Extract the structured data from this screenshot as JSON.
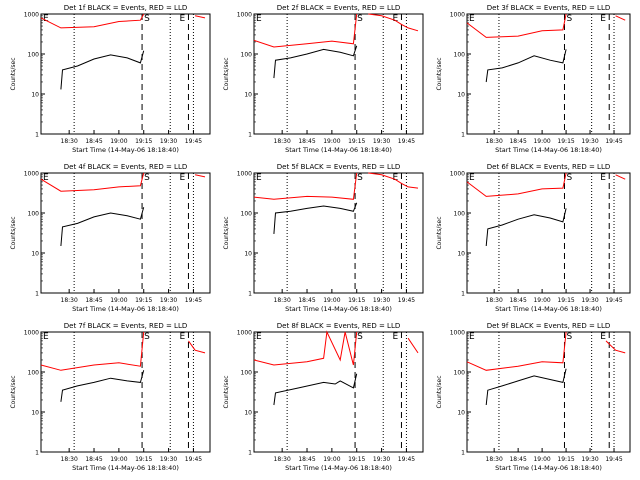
{
  "chart_data": [
    {
      "type": "line",
      "title": "Det 1f BLACK = Events, RED = LLD",
      "xlabel": "Start Time (14-May-06 18:18:40)",
      "ylabel": "Counts/sec",
      "yscale": "log",
      "ylim": [
        1,
        1000
      ],
      "grid": false,
      "xticks": [
        "18:30",
        "18:45",
        "19:00",
        "19:15",
        "19:30",
        "19:45"
      ],
      "markers": [
        "E",
        "S",
        "E"
      ],
      "series": [
        {
          "color": "#000000",
          "values": [
            {
              "t": "18:25",
              "v": 13
            },
            {
              "t": "18:26",
              "v": 40
            },
            {
              "t": "18:35",
              "v": 50
            },
            {
              "t": "18:45",
              "v": 75
            },
            {
              "t": "18:55",
              "v": 95
            },
            {
              "t": "19:05",
              "v": 80
            },
            {
              "t": "19:13",
              "v": 60
            },
            {
              "t": "19:15",
              "v": 120
            }
          ]
        },
        {
          "color": "#ff0000",
          "values": [
            {
              "t": "18:13",
              "v": 800
            },
            {
              "t": "18:25",
              "v": 450
            },
            {
              "t": "18:45",
              "v": 480
            },
            {
              "t": "19:00",
              "v": 650
            },
            {
              "t": "19:13",
              "v": 700
            },
            {
              "t": "19:15",
              "v": 1000
            }
          ]
        },
        {
          "color": "#ff0000",
          "values": [
            {
              "t": "19:46",
              "v": 900
            },
            {
              "t": "19:52",
              "v": 800
            }
          ]
        }
      ]
    },
    {
      "type": "line",
      "title": "Det 2f BLACK = Events, RED = LLD",
      "xlabel": "Start Time (14-May-06 18:18:40)",
      "ylabel": "Counts/sec",
      "yscale": "log",
      "ylim": [
        1,
        1000
      ],
      "grid": false,
      "xticks": [
        "18:30",
        "18:45",
        "19:00",
        "19:15",
        "19:30",
        "19:45"
      ],
      "markers": [
        "E",
        "S",
        "E"
      ],
      "series": [
        {
          "color": "#000000",
          "values": [
            {
              "t": "18:25",
              "v": 25
            },
            {
              "t": "18:26",
              "v": 70
            },
            {
              "t": "18:35",
              "v": 80
            },
            {
              "t": "18:45",
              "v": 100
            },
            {
              "t": "18:55",
              "v": 130
            },
            {
              "t": "19:05",
              "v": 110
            },
            {
              "t": "19:13",
              "v": 90
            },
            {
              "t": "19:15",
              "v": 160
            }
          ]
        },
        {
          "color": "#ff0000",
          "values": [
            {
              "t": "18:13",
              "v": 220
            },
            {
              "t": "18:25",
              "v": 150
            },
            {
              "t": "18:45",
              "v": 180
            },
            {
              "t": "19:00",
              "v": 210
            },
            {
              "t": "19:13",
              "v": 180
            },
            {
              "t": "19:15",
              "v": 1000
            }
          ]
        },
        {
          "color": "#ff0000",
          "values": [
            {
              "t": "19:22",
              "v": 1000
            },
            {
              "t": "19:30",
              "v": 900
            },
            {
              "t": "19:38",
              "v": 700
            },
            {
              "t": "19:42",
              "v": 550
            },
            {
              "t": "19:46",
              "v": 450
            },
            {
              "t": "19:52",
              "v": 380
            }
          ]
        }
      ]
    },
    {
      "type": "line",
      "title": "Det 3f BLACK = Events, RED = LLD",
      "xlabel": "Start Time (14-May-06 18:18:40)",
      "ylabel": "Counts/sec",
      "yscale": "log",
      "ylim": [
        1,
        1000
      ],
      "grid": false,
      "xticks": [
        "18:30",
        "18:45",
        "19:00",
        "19:15",
        "19:30",
        "19:45"
      ],
      "markers": [
        "E",
        "S",
        "E"
      ],
      "series": [
        {
          "color": "#000000",
          "values": [
            {
              "t": "18:25",
              "v": 20
            },
            {
              "t": "18:26",
              "v": 40
            },
            {
              "t": "18:35",
              "v": 45
            },
            {
              "t": "18:45",
              "v": 60
            },
            {
              "t": "18:55",
              "v": 90
            },
            {
              "t": "19:05",
              "v": 70
            },
            {
              "t": "19:13",
              "v": 60
            },
            {
              "t": "19:15",
              "v": 130
            }
          ]
        },
        {
          "color": "#ff0000",
          "values": [
            {
              "t": "18:13",
              "v": 600
            },
            {
              "t": "18:25",
              "v": 260
            },
            {
              "t": "18:45",
              "v": 280
            },
            {
              "t": "19:00",
              "v": 380
            },
            {
              "t": "19:13",
              "v": 400
            },
            {
              "t": "19:15",
              "v": 1000
            }
          ]
        },
        {
          "color": "#ff0000",
          "values": [
            {
              "t": "19:46",
              "v": 900
            },
            {
              "t": "19:52",
              "v": 700
            }
          ]
        }
      ]
    },
    {
      "type": "line",
      "title": "Det 4f BLACK = Events, RED = LLD",
      "xlabel": "Start Time (14-May-06 18:18:40)",
      "ylabel": "Counts/sec",
      "yscale": "log",
      "ylim": [
        1,
        1000
      ],
      "grid": false,
      "xticks": [
        "18:30",
        "18:45",
        "19:00",
        "19:15",
        "19:30",
        "19:45"
      ],
      "markers": [
        "E",
        "S",
        "E"
      ],
      "series": [
        {
          "color": "#000000",
          "values": [
            {
              "t": "18:25",
              "v": 15
            },
            {
              "t": "18:26",
              "v": 45
            },
            {
              "t": "18:35",
              "v": 55
            },
            {
              "t": "18:45",
              "v": 80
            },
            {
              "t": "18:55",
              "v": 100
            },
            {
              "t": "19:05",
              "v": 85
            },
            {
              "t": "19:13",
              "v": 70
            },
            {
              "t": "19:15",
              "v": 140
            }
          ]
        },
        {
          "color": "#ff0000",
          "values": [
            {
              "t": "18:13",
              "v": 700
            },
            {
              "t": "18:25",
              "v": 350
            },
            {
              "t": "18:45",
              "v": 380
            },
            {
              "t": "19:00",
              "v": 450
            },
            {
              "t": "19:13",
              "v": 480
            },
            {
              "t": "19:15",
              "v": 1000
            }
          ]
        },
        {
          "color": "#ff0000",
          "values": [
            {
              "t": "19:46",
              "v": 900
            },
            {
              "t": "19:52",
              "v": 800
            }
          ]
        }
      ]
    },
    {
      "type": "line",
      "title": "Det 5f BLACK = Events, RED = LLD",
      "xlabel": "Start Time (14-May-06 18:18:40)",
      "ylabel": "Counts/sec",
      "yscale": "log",
      "ylim": [
        1,
        1000
      ],
      "grid": false,
      "xticks": [
        "18:30",
        "18:45",
        "19:00",
        "19:15",
        "19:30",
        "19:45"
      ],
      "markers": [
        "E",
        "S",
        "E"
      ],
      "series": [
        {
          "color": "#000000",
          "values": [
            {
              "t": "18:25",
              "v": 30
            },
            {
              "t": "18:26",
              "v": 100
            },
            {
              "t": "18:35",
              "v": 110
            },
            {
              "t": "18:45",
              "v": 130
            },
            {
              "t": "18:55",
              "v": 150
            },
            {
              "t": "19:05",
              "v": 130
            },
            {
              "t": "19:13",
              "v": 110
            },
            {
              "t": "19:15",
              "v": 180
            }
          ]
        },
        {
          "color": "#ff0000",
          "values": [
            {
              "t": "18:13",
              "v": 250
            },
            {
              "t": "18:25",
              "v": 220
            },
            {
              "t": "18:45",
              "v": 260
            },
            {
              "t": "19:00",
              "v": 250
            },
            {
              "t": "19:13",
              "v": 220
            },
            {
              "t": "19:15",
              "v": 1000
            }
          ]
        },
        {
          "color": "#ff0000",
          "values": [
            {
              "t": "19:22",
              "v": 1000
            },
            {
              "t": "19:30",
              "v": 900
            },
            {
              "t": "19:38",
              "v": 700
            },
            {
              "t": "19:42",
              "v": 550
            },
            {
              "t": "19:46",
              "v": 450
            },
            {
              "t": "19:52",
              "v": 420
            }
          ]
        }
      ]
    },
    {
      "type": "line",
      "title": "Det 6f BLACK = Events, RED = LLD",
      "xlabel": "Start Time (14-May-06 18:18:40)",
      "ylabel": "Counts/sec",
      "yscale": "log",
      "ylim": [
        1,
        1000
      ],
      "grid": false,
      "xticks": [
        "18:30",
        "18:45",
        "19:00",
        "19:15",
        "19:30",
        "19:45"
      ],
      "markers": [
        "E",
        "S",
        "E"
      ],
      "series": [
        {
          "color": "#000000",
          "values": [
            {
              "t": "18:25",
              "v": 15
            },
            {
              "t": "18:26",
              "v": 40
            },
            {
              "t": "18:35",
              "v": 50
            },
            {
              "t": "18:45",
              "v": 70
            },
            {
              "t": "18:55",
              "v": 90
            },
            {
              "t": "19:05",
              "v": 75
            },
            {
              "t": "19:13",
              "v": 60
            },
            {
              "t": "19:15",
              "v": 130
            }
          ]
        },
        {
          "color": "#ff0000",
          "values": [
            {
              "t": "18:13",
              "v": 600
            },
            {
              "t": "18:25",
              "v": 260
            },
            {
              "t": "18:45",
              "v": 300
            },
            {
              "t": "19:00",
              "v": 400
            },
            {
              "t": "19:13",
              "v": 420
            },
            {
              "t": "19:15",
              "v": 1000
            }
          ]
        },
        {
          "color": "#ff0000",
          "values": [
            {
              "t": "19:46",
              "v": 900
            },
            {
              "t": "19:52",
              "v": 700
            }
          ]
        }
      ]
    },
    {
      "type": "line",
      "title": "Det 7f BLACK = Events, RED = LLD",
      "xlabel": "Start Time (14-May-06 18:18:40)",
      "ylabel": "Counts/sec",
      "yscale": "log",
      "ylim": [
        1,
        1000
      ],
      "grid": false,
      "xticks": [
        "18:30",
        "18:45",
        "19:00",
        "19:15",
        "19:30",
        "19:45"
      ],
      "markers": [
        "E",
        "S",
        "E"
      ],
      "series": [
        {
          "color": "#000000",
          "values": [
            {
              "t": "18:25",
              "v": 18
            },
            {
              "t": "18:26",
              "v": 35
            },
            {
              "t": "18:35",
              "v": 45
            },
            {
              "t": "18:45",
              "v": 55
            },
            {
              "t": "18:55",
              "v": 70
            },
            {
              "t": "19:05",
              "v": 60
            },
            {
              "t": "19:13",
              "v": 55
            },
            {
              "t": "19:15",
              "v": 110
            }
          ]
        },
        {
          "color": "#ff0000",
          "values": [
            {
              "t": "18:13",
              "v": 150
            },
            {
              "t": "18:25",
              "v": 110
            },
            {
              "t": "18:45",
              "v": 150
            },
            {
              "t": "19:00",
              "v": 170
            },
            {
              "t": "19:13",
              "v": 140
            },
            {
              "t": "19:15",
              "v": 1000
            }
          ]
        },
        {
          "color": "#ff0000",
          "values": [
            {
              "t": "19:42",
              "v": 600
            },
            {
              "t": "19:46",
              "v": 350
            },
            {
              "t": "19:52",
              "v": 300
            }
          ]
        }
      ]
    },
    {
      "type": "line",
      "title": "Det 8f BLACK = Events, RED = LLD",
      "xlabel": "Start Time (14-May-06 18:18:40)",
      "ylabel": "Counts/sec",
      "yscale": "log",
      "ylim": [
        1,
        1000
      ],
      "grid": false,
      "xticks": [
        "18:30",
        "18:45",
        "19:00",
        "19:15",
        "19:30",
        "19:45"
      ],
      "markers": [
        "E",
        "S",
        "E"
      ],
      "series": [
        {
          "color": "#000000",
          "values": [
            {
              "t": "18:25",
              "v": 15
            },
            {
              "t": "18:26",
              "v": 30
            },
            {
              "t": "18:40",
              "v": 40
            },
            {
              "t": "18:55",
              "v": 55
            },
            {
              "t": "19:02",
              "v": 50
            },
            {
              "t": "19:05",
              "v": 60
            },
            {
              "t": "19:13",
              "v": 40
            },
            {
              "t": "19:15",
              "v": 90
            }
          ]
        },
        {
          "color": "#ff0000",
          "values": [
            {
              "t": "18:13",
              "v": 200
            },
            {
              "t": "18:25",
              "v": 150
            },
            {
              "t": "18:45",
              "v": 180
            },
            {
              "t": "18:55",
              "v": 220
            },
            {
              "t": "18:57",
              "v": 1000
            },
            {
              "t": "19:05",
              "v": 200
            },
            {
              "t": "19:08",
              "v": 1000
            },
            {
              "t": "19:13",
              "v": 150
            },
            {
              "t": "19:15",
              "v": 1000
            }
          ]
        },
        {
          "color": "#ff0000",
          "values": [
            {
              "t": "19:46",
              "v": 700
            },
            {
              "t": "19:52",
              "v": 300
            }
          ]
        }
      ]
    },
    {
      "type": "line",
      "title": "Det 9f BLACK = Events, RED = LLD",
      "xlabel": "Start Time (14-May-06 18:18:40)",
      "ylabel": "Counts/sec",
      "yscale": "log",
      "ylim": [
        1,
        1000
      ],
      "grid": false,
      "xticks": [
        "18:30",
        "18:45",
        "19:00",
        "19:15",
        "19:30",
        "19:45"
      ],
      "markers": [
        "E",
        "S",
        "E"
      ],
      "series": [
        {
          "color": "#000000",
          "values": [
            {
              "t": "18:25",
              "v": 15
            },
            {
              "t": "18:26",
              "v": 35
            },
            {
              "t": "18:35",
              "v": 45
            },
            {
              "t": "18:45",
              "v": 60
            },
            {
              "t": "18:55",
              "v": 80
            },
            {
              "t": "19:05",
              "v": 65
            },
            {
              "t": "19:13",
              "v": 55
            },
            {
              "t": "19:15",
              "v": 120
            }
          ]
        },
        {
          "color": "#ff0000",
          "values": [
            {
              "t": "18:13",
              "v": 180
            },
            {
              "t": "18:25",
              "v": 110
            },
            {
              "t": "18:45",
              "v": 140
            },
            {
              "t": "19:00",
              "v": 180
            },
            {
              "t": "19:13",
              "v": 170
            },
            {
              "t": "19:15",
              "v": 1000
            }
          ]
        },
        {
          "color": "#ff0000",
          "values": [
            {
              "t": "19:40",
              "v": 600
            },
            {
              "t": "19:46",
              "v": 350
            },
            {
              "t": "19:52",
              "v": 300
            }
          ]
        }
      ]
    }
  ]
}
